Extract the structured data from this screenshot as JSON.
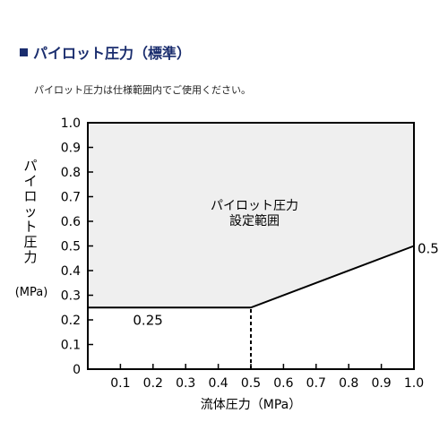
{
  "header": {
    "title": "パイロット圧力（標準）",
    "note": "パイロット圧力は仕様範囲内でご使用ください。"
  },
  "chart_data": {
    "type": "area",
    "xlabel": "流体圧力（MPa）",
    "ylabel": "パイロット圧力",
    "ylabel_unit": "(MPa)",
    "xlim": [
      0,
      1.0
    ],
    "ylim": [
      0,
      1.0
    ],
    "x_ticks": [
      "0.1",
      "0.2",
      "0.3",
      "0.4",
      "0.5",
      "0.6",
      "0.7",
      "0.8",
      "0.9",
      "1.0"
    ],
    "y_ticks": [
      "0",
      "0.1",
      "0.2",
      "0.3",
      "0.4",
      "0.5",
      "0.6",
      "0.7",
      "0.8",
      "0.9",
      "1.0"
    ],
    "region": {
      "label_line1": "パイロット圧力",
      "label_line2": "設定範囲",
      "color": "#efefef",
      "boundary": [
        {
          "x": 0,
          "y": 0.25
        },
        {
          "x": 0.5,
          "y": 0.25
        },
        {
          "x": 1.0,
          "y": 0.5
        }
      ]
    },
    "annotations": [
      {
        "text": "0.25",
        "x": 0.1,
        "y": 0.25,
        "position": "below"
      },
      {
        "text": "0.5",
        "x": 1.0,
        "y": 0.5,
        "position": "right"
      }
    ],
    "dashed_line": {
      "x": 0.5,
      "y_from": 0,
      "y_to": 0.25
    },
    "grid": false
  }
}
